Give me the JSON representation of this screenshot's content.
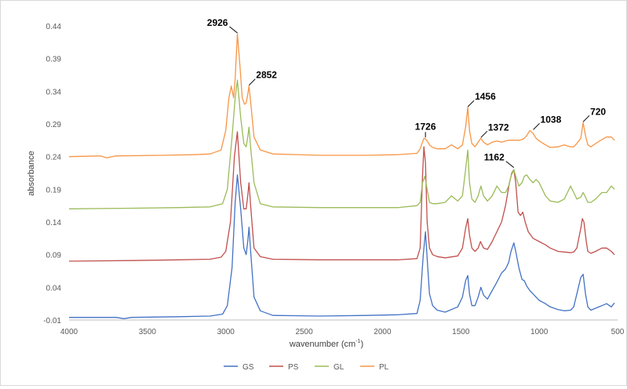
{
  "chart_data": {
    "type": "line",
    "title": "",
    "xlabel": "wavenumber (cm",
    "xlabel_sup": "-1",
    "xlabel_suffix": ")",
    "ylabel": "absorbance",
    "xlim": [
      4000,
      500
    ],
    "x_reversed": true,
    "ylim": [
      -0.01,
      0.44
    ],
    "x_ticks": [
      4000,
      3500,
      3000,
      2500,
      2000,
      1500,
      1000,
      500
    ],
    "x_tick_labels": [
      "4000",
      "3500",
      "3000",
      "2500",
      "2000",
      "1500",
      "1000",
      "500"
    ],
    "y_ticks": [
      -0.01,
      0.04,
      0.09,
      0.14,
      0.19,
      0.24,
      0.29,
      0.34,
      0.39,
      0.44
    ],
    "y_tick_labels": [
      "-0.01",
      "0.04",
      "0.09",
      "0.14",
      "0.19",
      "0.24",
      "0.29",
      "0.34",
      "0.39",
      "0.44"
    ],
    "grid": false,
    "legend_position": "bottom",
    "series": [
      {
        "name": "GS",
        "color": "#4472c4",
        "x": [
          4000,
          3700,
          3650,
          3600,
          3300,
          3100,
          3020,
          2990,
          2960,
          2940,
          2926,
          2905,
          2885,
          2870,
          2860,
          2852,
          2840,
          2820,
          2780,
          2700,
          2400,
          2100,
          1900,
          1780,
          1760,
          1740,
          1726,
          1715,
          1700,
          1680,
          1650,
          1600,
          1520,
          1490,
          1470,
          1456,
          1445,
          1430,
          1410,
          1390,
          1372,
          1355,
          1330,
          1300,
          1270,
          1240,
          1215,
          1195,
          1180,
          1162,
          1150,
          1130,
          1110,
          1095,
          1080,
          1060,
          1040,
          1000,
          960,
          930,
          880,
          840,
          800,
          780,
          760,
          735,
          720,
          705,
          690,
          670,
          640,
          600,
          570,
          540,
          520
        ],
        "y": [
          -0.006,
          -0.006,
          -0.008,
          -0.006,
          -0.005,
          -0.004,
          -0.001,
          0.012,
          0.07,
          0.17,
          0.212,
          0.16,
          0.1,
          0.09,
          0.11,
          0.132,
          0.09,
          0.025,
          0.004,
          -0.003,
          -0.004,
          -0.003,
          -0.002,
          0.0,
          0.02,
          0.09,
          0.125,
          0.085,
          0.03,
          0.012,
          0.005,
          0.002,
          0.01,
          0.025,
          0.05,
          0.058,
          0.03,
          0.012,
          0.012,
          0.025,
          0.04,
          0.028,
          0.022,
          0.035,
          0.048,
          0.062,
          0.068,
          0.078,
          0.095,
          0.108,
          0.095,
          0.07,
          0.052,
          0.05,
          0.042,
          0.035,
          0.03,
          0.02,
          0.015,
          0.01,
          0.006,
          0.004,
          0.005,
          0.01,
          0.03,
          0.055,
          0.06,
          0.03,
          0.01,
          0.005,
          0.008,
          0.012,
          0.015,
          0.01,
          0.016
        ]
      },
      {
        "name": "PS",
        "color": "#c0504d",
        "x": [
          4000,
          3600,
          3300,
          3100,
          3030,
          3000,
          2970,
          2945,
          2926,
          2905,
          2885,
          2870,
          2860,
          2852,
          2840,
          2820,
          2780,
          2700,
          2400,
          2100,
          1900,
          1780,
          1760,
          1745,
          1736,
          1726,
          1715,
          1700,
          1680,
          1650,
          1600,
          1520,
          1490,
          1470,
          1456,
          1445,
          1430,
          1410,
          1390,
          1375,
          1355,
          1330,
          1300,
          1270,
          1240,
          1215,
          1190,
          1175,
          1162,
          1150,
          1135,
          1120,
          1105,
          1090,
          1070,
          1040,
          1000,
          960,
          930,
          880,
          840,
          800,
          780,
          760,
          735,
          725,
          715,
          700,
          690,
          670,
          640,
          600,
          570,
          540,
          520
        ],
        "y": [
          0.08,
          0.081,
          0.082,
          0.083,
          0.086,
          0.095,
          0.14,
          0.24,
          0.278,
          0.2,
          0.16,
          0.16,
          0.18,
          0.2,
          0.16,
          0.1,
          0.087,
          0.083,
          0.082,
          0.082,
          0.082,
          0.084,
          0.1,
          0.21,
          0.255,
          0.23,
          0.14,
          0.1,
          0.09,
          0.087,
          0.085,
          0.088,
          0.1,
          0.13,
          0.145,
          0.12,
          0.1,
          0.095,
          0.1,
          0.11,
          0.1,
          0.098,
          0.11,
          0.125,
          0.14,
          0.165,
          0.2,
          0.215,
          0.22,
          0.2,
          0.155,
          0.15,
          0.155,
          0.14,
          0.125,
          0.115,
          0.11,
          0.105,
          0.1,
          0.095,
          0.094,
          0.093,
          0.094,
          0.1,
          0.13,
          0.145,
          0.14,
          0.11,
          0.095,
          0.092,
          0.095,
          0.1,
          0.1,
          0.095,
          0.09
        ]
      },
      {
        "name": "GL",
        "color": "#9bbb59",
        "x": [
          4000,
          3600,
          3300,
          3100,
          3020,
          2990,
          2960,
          2940,
          2926,
          2905,
          2885,
          2870,
          2860,
          2852,
          2840,
          2820,
          2780,
          2700,
          2400,
          2100,
          1900,
          1780,
          1760,
          1745,
          1730,
          1715,
          1700,
          1680,
          1650,
          1600,
          1560,
          1520,
          1490,
          1470,
          1456,
          1445,
          1430,
          1410,
          1390,
          1372,
          1355,
          1330,
          1300,
          1270,
          1240,
          1215,
          1195,
          1180,
          1162,
          1150,
          1130,
          1110,
          1095,
          1080,
          1060,
          1040,
          1020,
          1000,
          960,
          930,
          880,
          840,
          820,
          800,
          780,
          760,
          735,
          720,
          705,
          690,
          670,
          640,
          600,
          570,
          540,
          520
        ],
        "y": [
          0.16,
          0.161,
          0.162,
          0.163,
          0.168,
          0.19,
          0.27,
          0.33,
          0.357,
          0.3,
          0.26,
          0.255,
          0.27,
          0.285,
          0.25,
          0.2,
          0.168,
          0.163,
          0.162,
          0.162,
          0.162,
          0.165,
          0.17,
          0.2,
          0.21,
          0.19,
          0.17,
          0.168,
          0.168,
          0.17,
          0.18,
          0.172,
          0.18,
          0.22,
          0.25,
          0.2,
          0.175,
          0.17,
          0.18,
          0.195,
          0.18,
          0.172,
          0.18,
          0.195,
          0.185,
          0.185,
          0.195,
          0.21,
          0.22,
          0.21,
          0.195,
          0.2,
          0.21,
          0.212,
          0.205,
          0.2,
          0.205,
          0.2,
          0.18,
          0.172,
          0.17,
          0.175,
          0.185,
          0.195,
          0.185,
          0.175,
          0.178,
          0.185,
          0.178,
          0.17,
          0.17,
          0.175,
          0.185,
          0.185,
          0.195,
          0.19
        ]
      },
      {
        "name": "PL",
        "color": "#f79646",
        "x": [
          4000,
          3800,
          3760,
          3700,
          3400,
          3200,
          3100,
          3030,
          3000,
          2980,
          2965,
          2950,
          2940,
          2926,
          2910,
          2895,
          2880,
          2870,
          2860,
          2852,
          2840,
          2820,
          2780,
          2700,
          2400,
          2100,
          1900,
          1780,
          1760,
          1745,
          1736,
          1726,
          1715,
          1700,
          1680,
          1650,
          1600,
          1560,
          1520,
          1490,
          1470,
          1456,
          1445,
          1430,
          1410,
          1390,
          1372,
          1355,
          1330,
          1300,
          1270,
          1240,
          1215,
          1195,
          1180,
          1162,
          1150,
          1130,
          1110,
          1095,
          1080,
          1060,
          1038,
          1020,
          1000,
          960,
          930,
          880,
          840,
          800,
          780,
          760,
          735,
          720,
          705,
          690,
          670,
          640,
          600,
          570,
          540,
          520
        ],
        "y": [
          0.24,
          0.241,
          0.238,
          0.241,
          0.242,
          0.243,
          0.244,
          0.25,
          0.28,
          0.33,
          0.348,
          0.33,
          0.36,
          0.428,
          0.38,
          0.33,
          0.32,
          0.322,
          0.335,
          0.348,
          0.32,
          0.27,
          0.25,
          0.244,
          0.242,
          0.242,
          0.243,
          0.245,
          0.252,
          0.262,
          0.268,
          0.267,
          0.264,
          0.258,
          0.254,
          0.252,
          0.252,
          0.258,
          0.252,
          0.258,
          0.285,
          0.315,
          0.28,
          0.26,
          0.255,
          0.262,
          0.268,
          0.262,
          0.258,
          0.262,
          0.264,
          0.262,
          0.264,
          0.265,
          0.265,
          0.265,
          0.265,
          0.265,
          0.266,
          0.268,
          0.272,
          0.28,
          0.275,
          0.268,
          0.264,
          0.258,
          0.254,
          0.255,
          0.258,
          0.255,
          0.255,
          0.26,
          0.268,
          0.292,
          0.272,
          0.258,
          0.255,
          0.26,
          0.266,
          0.27,
          0.27,
          0.265
        ]
      }
    ],
    "annotations": [
      {
        "label": "2926",
        "x": 2926,
        "y": 0.428,
        "side": "left"
      },
      {
        "label": "2852",
        "x": 2852,
        "y": 0.348,
        "side": "right"
      },
      {
        "label": "1726",
        "x": 1726,
        "y": 0.268,
        "side": "up"
      },
      {
        "label": "1456",
        "x": 1456,
        "y": 0.315,
        "side": "right"
      },
      {
        "label": "1372",
        "x": 1372,
        "y": 0.268,
        "side": "right"
      },
      {
        "label": "1162",
        "x": 1162,
        "y": 0.222,
        "side": "left"
      },
      {
        "label": "1038",
        "x": 1038,
        "y": 0.28,
        "side": "right"
      },
      {
        "label": "720",
        "x": 720,
        "y": 0.292,
        "side": "right"
      }
    ]
  }
}
